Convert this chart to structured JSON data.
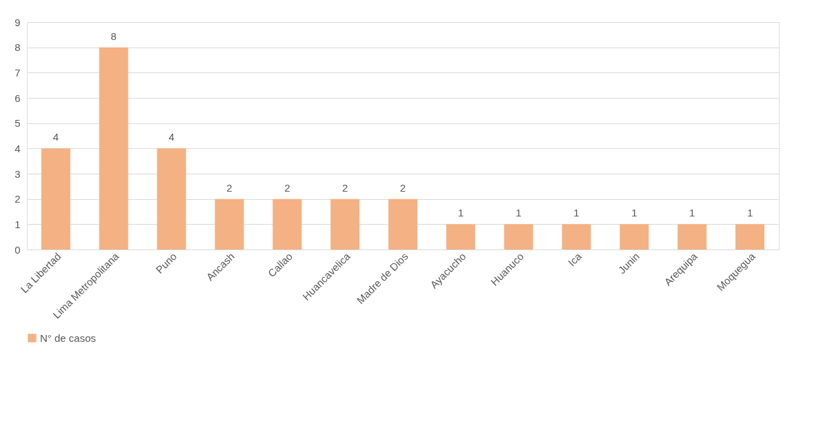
{
  "chart_data": {
    "type": "bar",
    "categories": [
      "La Libertad",
      "Lima Metropolitana",
      "Puno",
      "Ancash",
      "Callao",
      "Huancavelica",
      "Madre de Dios",
      "Ayacucho",
      "Huanuco",
      "Ica",
      "Junin",
      "Arequipa",
      "Moquegua"
    ],
    "series": [
      {
        "name": "N° de casos",
        "color": "#f4b183",
        "values": [
          4,
          8,
          4,
          2,
          2,
          2,
          2,
          1,
          1,
          1,
          1,
          1,
          1
        ]
      }
    ],
    "ylim": [
      0,
      9
    ],
    "yticks": [
      0,
      1,
      2,
      3,
      4,
      5,
      6,
      7,
      8,
      9
    ],
    "grid": "y",
    "legend": "bottom",
    "data_labels": true
  }
}
